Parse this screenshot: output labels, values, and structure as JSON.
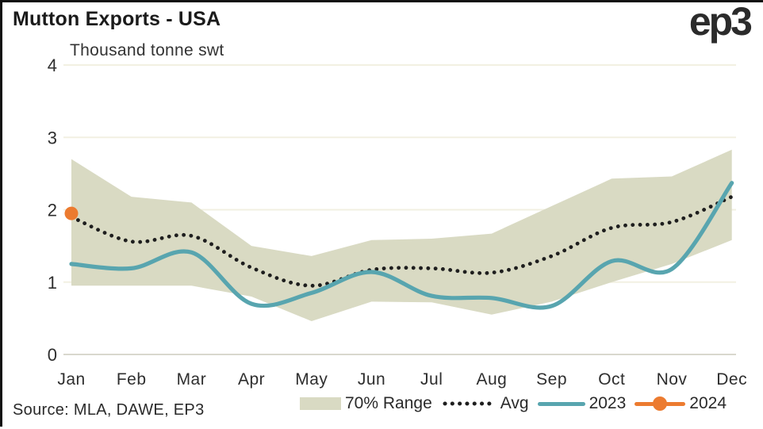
{
  "header": {
    "title": "Mutton Exports - USA",
    "subtitle": "Thousand tonne swt",
    "logo": "ep3"
  },
  "footer": {
    "source": "Source: MLA, DAWE, EP3"
  },
  "legend": {
    "items": [
      {
        "key": "range",
        "label": "70% Range"
      },
      {
        "key": "avg",
        "label": "Avg"
      },
      {
        "key": "2023",
        "label": "2023"
      },
      {
        "key": "2024",
        "label": "2024"
      }
    ]
  },
  "colors": {
    "band": "#d9dac3",
    "avg_dots": "#1e1e1e",
    "line_2023": "#58a5af",
    "point_2024": "#ec7b30",
    "gridline": "#f2f0e2",
    "zero_line": "#d9d8ce",
    "axis_text": "#2e2e2e",
    "title_text": "#1b1b1b"
  },
  "chart_data": {
    "type": "line",
    "title": "Mutton Exports - USA",
    "ylabel": "Thousand tonne swt",
    "xlabel": "",
    "ylim": [
      0,
      4
    ],
    "yticks": [
      0,
      1,
      2,
      3,
      4
    ],
    "grid": "horizontal",
    "legend_position": "bottom",
    "categories": [
      "Jan",
      "Feb",
      "Mar",
      "Apr",
      "May",
      "Jun",
      "Jul",
      "Aug",
      "Sep",
      "Oct",
      "Nov",
      "Dec"
    ],
    "series": [
      {
        "name": "70% Range",
        "type": "band",
        "upper": [
          2.7,
          2.18,
          2.1,
          1.5,
          1.36,
          1.58,
          1.6,
          1.67,
          2.05,
          2.43,
          2.46,
          2.83
        ],
        "lower": [
          0.95,
          0.95,
          0.95,
          0.8,
          0.46,
          0.73,
          0.72,
          0.55,
          0.73,
          1.0,
          1.25,
          1.58
        ]
      },
      {
        "name": "Avg",
        "type": "dotted-line",
        "values": [
          1.9,
          1.56,
          1.64,
          1.2,
          0.95,
          1.17,
          1.19,
          1.13,
          1.36,
          1.75,
          1.83,
          2.18
        ]
      },
      {
        "name": "2023",
        "type": "line",
        "values": [
          1.25,
          1.19,
          1.41,
          0.7,
          0.85,
          1.14,
          0.81,
          0.78,
          0.67,
          1.29,
          1.18,
          2.37
        ]
      },
      {
        "name": "2024",
        "type": "point",
        "values": [
          1.95,
          null,
          null,
          null,
          null,
          null,
          null,
          null,
          null,
          null,
          null,
          null
        ]
      }
    ]
  }
}
